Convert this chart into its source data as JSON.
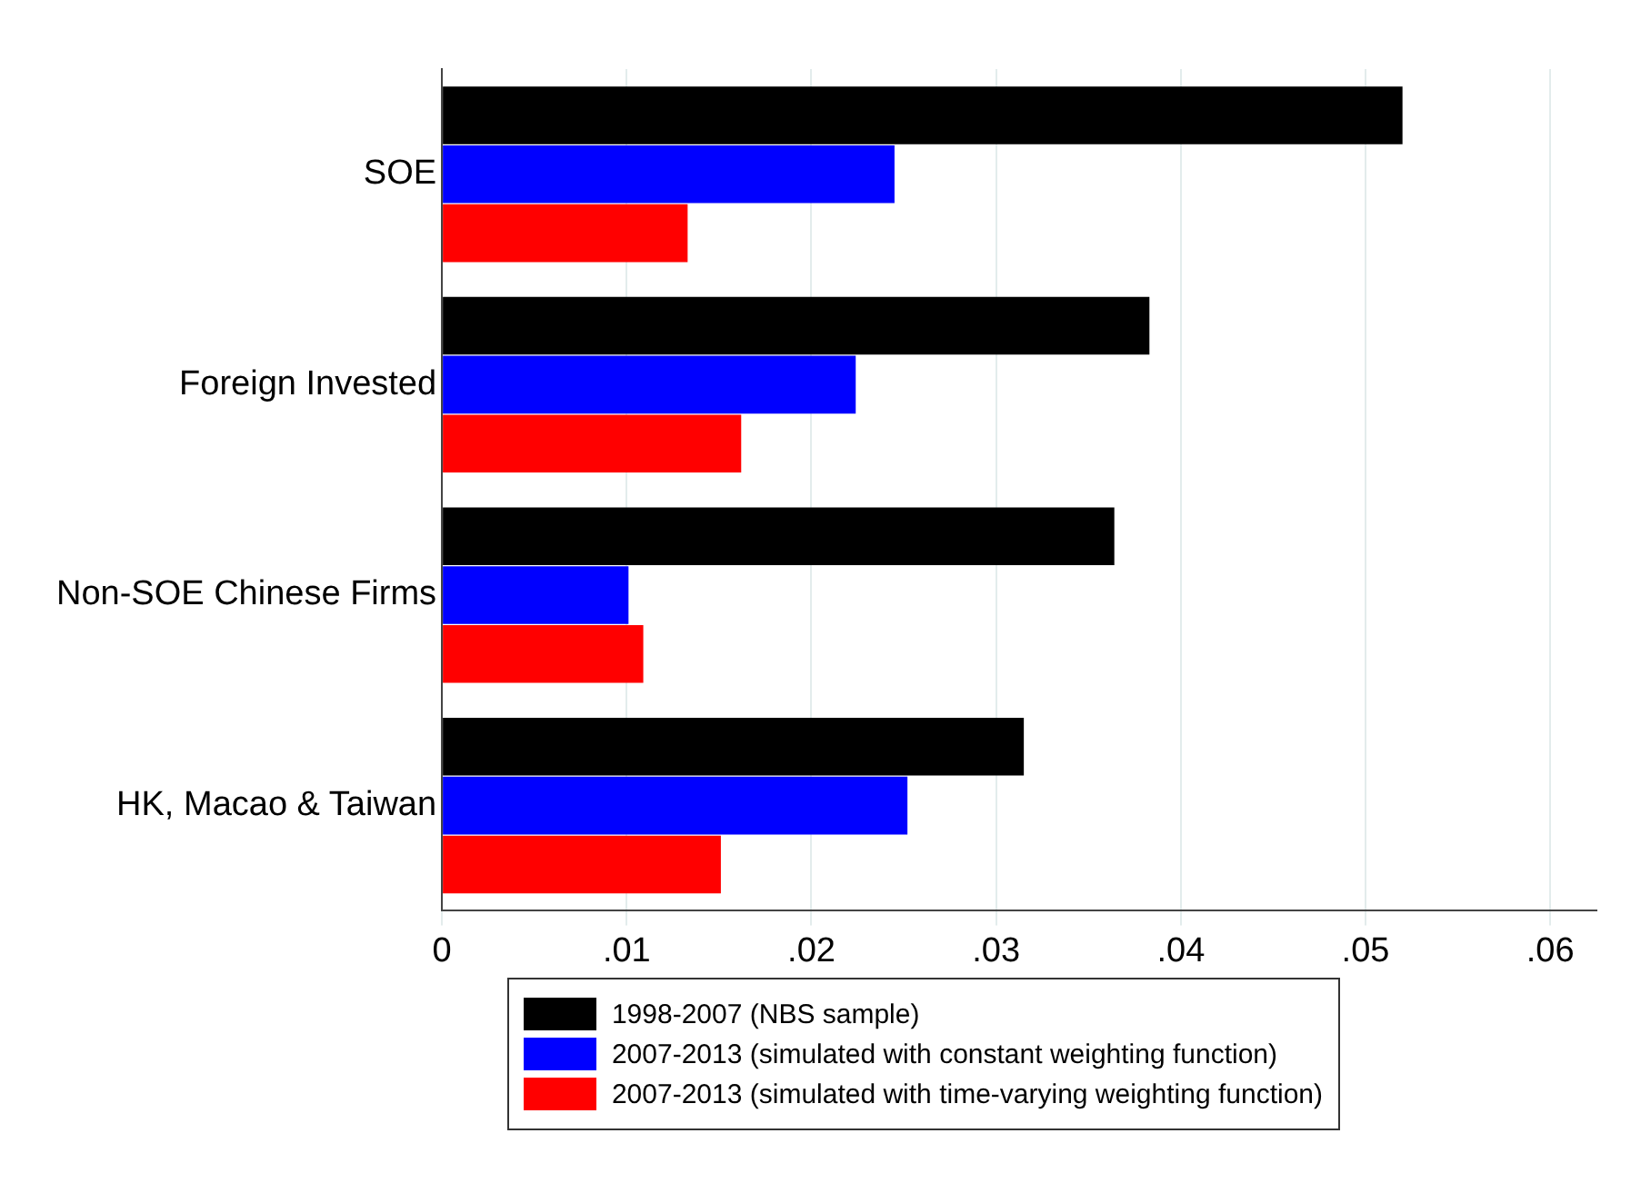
{
  "chart_data": {
    "type": "bar",
    "orientation": "horizontal",
    "categories": [
      "SOE",
      "Foreign Invested",
      "Non-SOE Chinese Firms",
      "HK, Macao & Taiwan"
    ],
    "series": [
      {
        "name": "1998-2007 (NBS sample)",
        "color": "#000000",
        "values": [
          0.052,
          0.0383,
          0.0364,
          0.0315
        ]
      },
      {
        "name": "2007-2013 (simulated with constant weighting function)",
        "color": "#0000ff",
        "values": [
          0.0245,
          0.0224,
          0.0101,
          0.0252
        ]
      },
      {
        "name": "2007-2013 (simulated with time-varying weighting function)",
        "color": "#ff0000",
        "values": [
          0.0133,
          0.0162,
          0.0109,
          0.0151
        ]
      }
    ],
    "xlim": [
      0,
      0.0625
    ],
    "xticks": [
      0,
      {
        "value": 0.01,
        "label": ".01"
      },
      {
        "value": 0.02,
        "label": ".02"
      },
      {
        "value": 0.03,
        "label": ".03"
      },
      {
        "value": 0.04,
        "label": ".04"
      },
      {
        "value": 0.05,
        "label": ".05"
      },
      {
        "value": 0.06,
        "label": ".06"
      }
    ],
    "grid": "x",
    "legend": "bottom"
  }
}
